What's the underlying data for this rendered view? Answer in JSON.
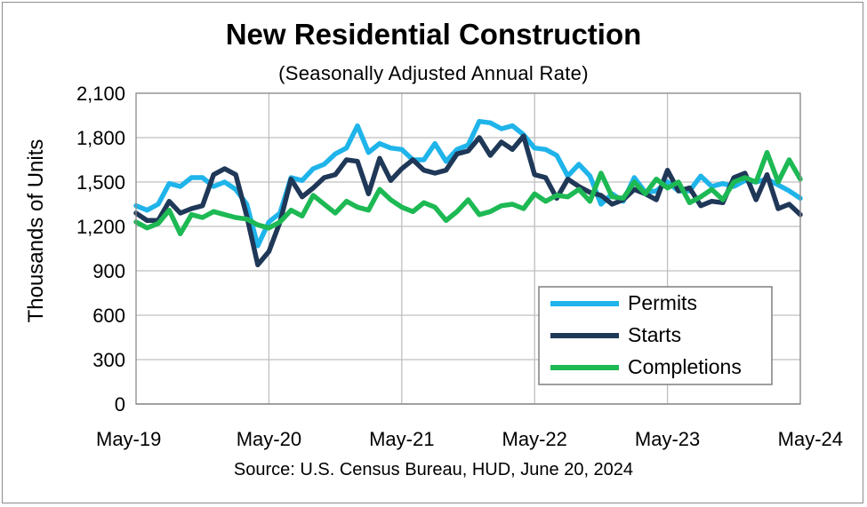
{
  "chart_data": {
    "type": "line",
    "title": "New Residential Construction",
    "subtitle": "(Seasonally Adjusted Annual Rate)",
    "ylabel": "Thousands of Units",
    "xlabel": "",
    "source": "Source:  U.S. Census Bureau, HUD, June 20, 2024",
    "ylim": [
      0,
      2100
    ],
    "yticks": [
      0,
      300,
      600,
      900,
      1200,
      1500,
      1800,
      2100
    ],
    "ytick_labels": [
      "0",
      "300",
      "600",
      "900",
      "1,200",
      "1,500",
      "1,800",
      "2,100"
    ],
    "xticks": [
      "May-19",
      "May-20",
      "May-21",
      "May-22",
      "May-23",
      "May-24"
    ],
    "grid": true,
    "legend": "bottom-right",
    "x": [
      "May-19",
      "Jun-19",
      "Jul-19",
      "Aug-19",
      "Sep-19",
      "Oct-19",
      "Nov-19",
      "Dec-19",
      "Jan-20",
      "Feb-20",
      "Mar-20",
      "Apr-20",
      "May-20",
      "Jun-20",
      "Jul-20",
      "Aug-20",
      "Sep-20",
      "Oct-20",
      "Nov-20",
      "Dec-20",
      "Jan-21",
      "Feb-21",
      "Mar-21",
      "Apr-21",
      "May-21",
      "Jun-21",
      "Jul-21",
      "Aug-21",
      "Sep-21",
      "Oct-21",
      "Nov-21",
      "Dec-21",
      "Jan-22",
      "Feb-22",
      "Mar-22",
      "Apr-22",
      "May-22",
      "Jun-22",
      "Jul-22",
      "Aug-22",
      "Sep-22",
      "Oct-22",
      "Nov-22",
      "Dec-22",
      "Jan-23",
      "Feb-23",
      "Mar-23",
      "Apr-23",
      "May-23",
      "Jun-23",
      "Jul-23",
      "Aug-23",
      "Sep-23",
      "Oct-23",
      "Nov-23",
      "Dec-23",
      "Jan-24",
      "Feb-24",
      "Mar-24",
      "Apr-24",
      "May-24"
    ],
    "series": [
      {
        "name": "Permits",
        "color": "#1fb4ea",
        "values": [
          1340,
          1310,
          1350,
          1490,
          1470,
          1530,
          1530,
          1470,
          1500,
          1450,
          1350,
          1070,
          1230,
          1290,
          1530,
          1510,
          1590,
          1620,
          1690,
          1730,
          1880,
          1700,
          1760,
          1730,
          1720,
          1650,
          1650,
          1760,
          1640,
          1720,
          1750,
          1910,
          1900,
          1860,
          1880,
          1820,
          1730,
          1720,
          1680,
          1540,
          1620,
          1540,
          1350,
          1420,
          1370,
          1530,
          1430,
          1440,
          1500,
          1440,
          1440,
          1540,
          1470,
          1490,
          1470,
          1510,
          1500,
          1520,
          1480,
          1440,
          1390
        ]
      },
      {
        "name": "Starts",
        "color": "#1f3858",
        "values": [
          1290,
          1240,
          1240,
          1370,
          1290,
          1320,
          1340,
          1550,
          1590,
          1550,
          1270,
          940,
          1030,
          1230,
          1520,
          1400,
          1460,
          1530,
          1550,
          1650,
          1640,
          1420,
          1660,
          1510,
          1590,
          1650,
          1580,
          1560,
          1580,
          1690,
          1710,
          1800,
          1680,
          1770,
          1720,
          1810,
          1550,
          1530,
          1390,
          1520,
          1470,
          1430,
          1410,
          1350,
          1380,
          1450,
          1420,
          1380,
          1580,
          1440,
          1460,
          1340,
          1370,
          1360,
          1530,
          1560,
          1380,
          1550,
          1320,
          1350,
          1280
        ]
      },
      {
        "name": "Completions",
        "color": "#1db954",
        "values": [
          1230,
          1190,
          1220,
          1310,
          1150,
          1280,
          1260,
          1300,
          1280,
          1260,
          1250,
          1210,
          1190,
          1230,
          1310,
          1270,
          1410,
          1350,
          1290,
          1370,
          1330,
          1310,
          1450,
          1380,
          1330,
          1300,
          1360,
          1330,
          1240,
          1300,
          1380,
          1280,
          1300,
          1340,
          1350,
          1320,
          1420,
          1370,
          1410,
          1400,
          1450,
          1370,
          1560,
          1400,
          1390,
          1500,
          1420,
          1520,
          1460,
          1500,
          1360,
          1400,
          1450,
          1380,
          1500,
          1530,
          1500,
          1700,
          1500,
          1650,
          1520
        ]
      }
    ]
  }
}
